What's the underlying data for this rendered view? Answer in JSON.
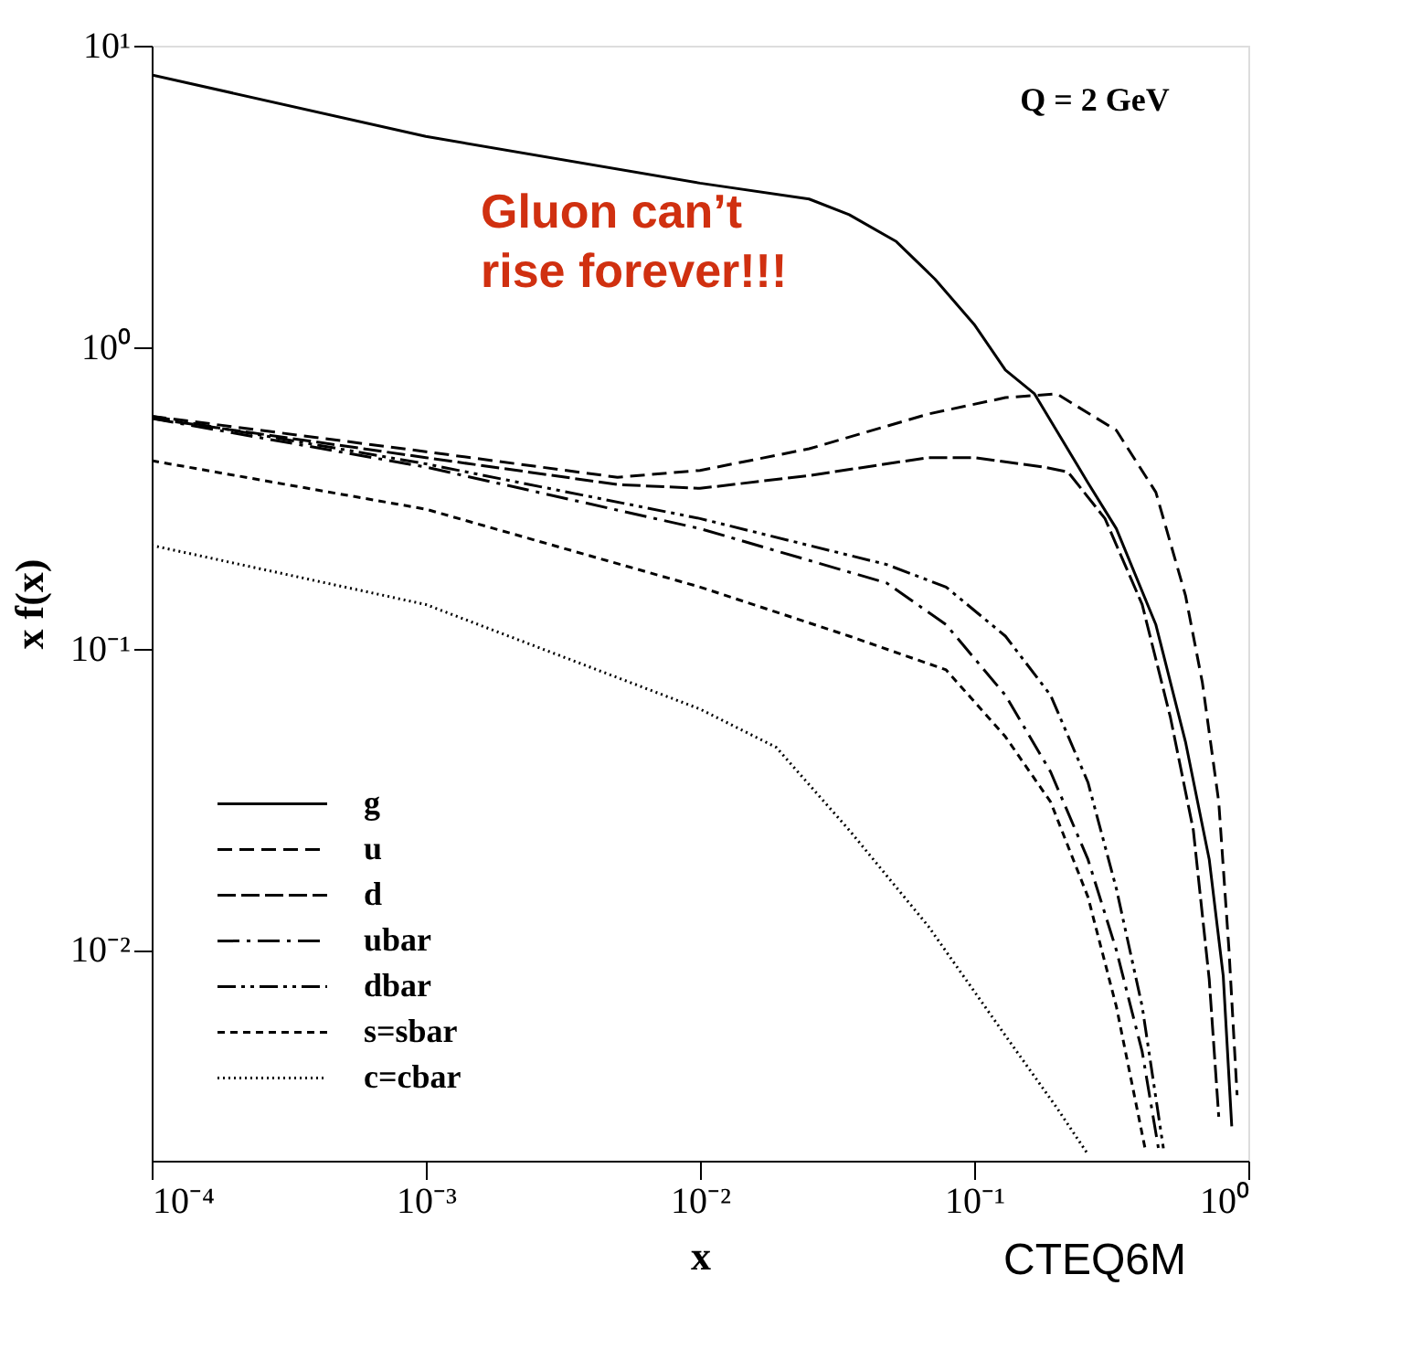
{
  "chart_data": {
    "type": "line",
    "xlabel": "x",
    "ylabel": "x f(x)",
    "log": "xy",
    "grid": false,
    "legend": "bottom left",
    "xlim": [
      0.0001,
      1
    ],
    "ylim": [
      0.002,
      10
    ],
    "xticks": [
      {
        "value": 0.0001,
        "label": "10⁻⁴"
      },
      {
        "value": 0.001,
        "label": "10⁻³"
      },
      {
        "value": 0.01,
        "label": "10⁻²"
      },
      {
        "value": 0.1,
        "label": "10⁻¹"
      },
      {
        "value": 1,
        "label": "10⁰"
      }
    ],
    "yticks": [
      {
        "value": 0.01,
        "label": "10⁻²"
      },
      {
        "value": 0.1,
        "label": "10⁻¹"
      },
      {
        "value": 1,
        "label": "10⁰"
      },
      {
        "value": 10,
        "label": "10¹"
      }
    ],
    "annotations": [
      "Q = 2 GeV",
      "Gluon can’t rise forever!!!",
      "CTEQ6M"
    ],
    "series": [
      {
        "name": "g",
        "color": "#000000",
        "line_style": "solid",
        "x": [
          0.0001,
          0.001,
          0.01,
          0.025,
          0.035,
          0.052,
          0.072,
          0.1,
          0.13,
          0.166,
          0.26,
          0.33,
          0.46,
          0.59,
          0.72,
          0.81,
          0.87
        ],
        "values": [
          8.0,
          5.0,
          3.5,
          3.1,
          2.75,
          2.24,
          1.68,
          1.19,
          0.84,
          0.7,
          0.355,
          0.25,
          0.12,
          0.049,
          0.02,
          0.0082,
          0.0026
        ]
      },
      {
        "name": "u",
        "color": "#000000",
        "line_style": "dashed",
        "x": [
          0.0001,
          0.001,
          0.005,
          0.01,
          0.025,
          0.068,
          0.13,
          0.2,
          0.33,
          0.46,
          0.59,
          0.68,
          0.78,
          0.85,
          0.91
        ],
        "values": [
          0.59,
          0.45,
          0.37,
          0.39,
          0.46,
          0.6,
          0.68,
          0.7,
          0.53,
          0.33,
          0.15,
          0.077,
          0.031,
          0.01,
          0.0033
        ]
      },
      {
        "name": "d",
        "color": "#000000",
        "line_style": "longdashed",
        "x": [
          0.0001,
          0.001,
          0.005,
          0.01,
          0.025,
          0.068,
          0.1,
          0.18,
          0.22,
          0.3,
          0.41,
          0.52,
          0.63,
          0.72,
          0.78
        ],
        "values": [
          0.58,
          0.43,
          0.35,
          0.34,
          0.375,
          0.43,
          0.43,
          0.4,
          0.385,
          0.27,
          0.14,
          0.059,
          0.025,
          0.008,
          0.0028
        ]
      },
      {
        "name": "ubar",
        "color": "#000000",
        "line_style": "dashdot",
        "x": [
          0.0001,
          0.001,
          0.01,
          0.048,
          0.079,
          0.13,
          0.19,
          0.26,
          0.33,
          0.41,
          0.47
        ],
        "values": [
          0.58,
          0.4,
          0.25,
          0.165,
          0.12,
          0.07,
          0.039,
          0.02,
          0.01,
          0.0046,
          0.0022
        ]
      },
      {
        "name": "dbar",
        "color": "#000000",
        "line_style": "dashdotdot",
        "x": [
          0.0001,
          0.001,
          0.01,
          0.048,
          0.079,
          0.13,
          0.19,
          0.26,
          0.33,
          0.41,
          0.49
        ],
        "values": [
          0.59,
          0.41,
          0.27,
          0.19,
          0.16,
          0.11,
          0.07,
          0.036,
          0.016,
          0.0065,
          0.0022
        ]
      },
      {
        "name": "s=sbar",
        "color": "#000000",
        "line_style": "shortdashed",
        "x": [
          0.0001,
          0.001,
          0.01,
          0.035,
          0.079,
          0.13,
          0.19,
          0.26,
          0.33,
          0.42
        ],
        "values": [
          0.42,
          0.29,
          0.16,
          0.11,
          0.085,
          0.051,
          0.031,
          0.015,
          0.0065,
          0.0022
        ]
      },
      {
        "name": "c=cbar",
        "color": "#000000",
        "line_style": "dotted",
        "x": [
          0.0001,
          0.001,
          0.01,
          0.019,
          0.035,
          0.068,
          0.13,
          0.2,
          0.26
        ],
        "values": [
          0.22,
          0.14,
          0.063,
          0.047,
          0.025,
          0.012,
          0.0052,
          0.003,
          0.0021
        ]
      }
    ]
  }
}
